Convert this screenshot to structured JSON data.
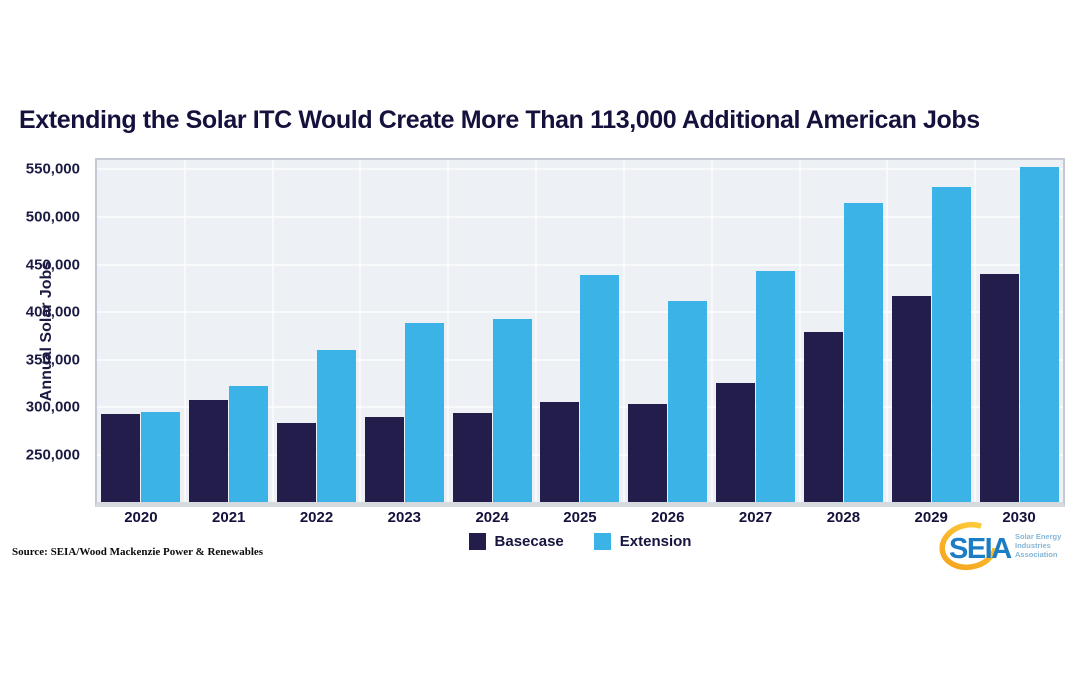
{
  "title": "Extending the Solar ITC Would Create More Than 113,000 Additional American Jobs",
  "source": "Source: SEIA/Wood Mackenzie Power & Renewables",
  "chart_data": {
    "type": "bar",
    "categories": [
      "2020",
      "2021",
      "2022",
      "2023",
      "2024",
      "2025",
      "2026",
      "2027",
      "2028",
      "2029",
      "2030"
    ],
    "series": [
      {
        "name": "Basecase",
        "color": "#221d4a",
        "values": [
          293000,
          307000,
          283000,
          289000,
          294000,
          305000,
          303000,
          325000,
          379000,
          417000,
          440000
        ]
      },
      {
        "name": "Extension",
        "color": "#3bb3e6",
        "values": [
          295000,
          322000,
          360000,
          388000,
          393000,
          439000,
          412000,
          443000,
          515000,
          532000,
          553000
        ]
      }
    ],
    "title": "Extending the Solar ITC Would Create More Than 113,000 Additional American Jobs",
    "xlabel": "",
    "ylabel": "Annual Solar Jobs",
    "ylim": [
      200000,
      560000
    ],
    "yticks": [
      250000,
      300000,
      350000,
      400000,
      450000,
      500000,
      550000
    ],
    "grid": true,
    "legend_position": "bottom-center"
  },
  "logo": {
    "text": "SEIA",
    "tagline_lines": [
      "Solar Energy",
      "Industries",
      "Association"
    ]
  },
  "colors": {
    "basecase": "#221d4a",
    "extension": "#3bb3e6",
    "title_text": "#14123c",
    "plot_bg": "#edf1f6",
    "gridline": "#f8fafc",
    "plot_border": "#c4c9d3",
    "axis_band": "#d6d9de",
    "logo_blue": "#1d7dc4",
    "logo_orange": "#f6a21d",
    "logo_yellow": "#ffd23f",
    "logo_tagline": "#85b7d6"
  }
}
